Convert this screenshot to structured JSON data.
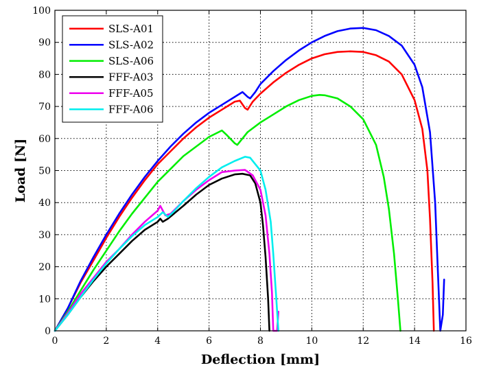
{
  "chart_data": {
    "type": "line",
    "title": "",
    "xlabel": "Deflection [mm]",
    "ylabel": "Load [N]",
    "xlim": [
      0,
      16
    ],
    "ylim": [
      0,
      100
    ],
    "xticks": [
      0,
      2,
      4,
      6,
      8,
      10,
      12,
      14,
      16
    ],
    "yticks": [
      0,
      10,
      20,
      30,
      40,
      50,
      60,
      70,
      80,
      90,
      100
    ],
    "grid": true,
    "legend_position": "top-left",
    "series": [
      {
        "name": "SLS-A01",
        "color": "#ff0000",
        "points": [
          [
            0,
            0
          ],
          [
            0.5,
            7
          ],
          [
            1,
            15
          ],
          [
            1.5,
            22
          ],
          [
            2,
            29
          ],
          [
            2.5,
            35.5
          ],
          [
            3,
            41.5
          ],
          [
            3.5,
            47
          ],
          [
            4,
            52
          ],
          [
            4.5,
            56
          ],
          [
            5,
            60
          ],
          [
            5.5,
            63.5
          ],
          [
            6,
            66.5
          ],
          [
            6.5,
            69
          ],
          [
            7,
            71.5
          ],
          [
            7.2,
            71.8
          ],
          [
            7.4,
            69.5
          ],
          [
            7.5,
            69
          ],
          [
            7.7,
            71.5
          ],
          [
            8,
            74
          ],
          [
            8.5,
            77.5
          ],
          [
            9,
            80.5
          ],
          [
            9.5,
            83
          ],
          [
            10,
            85
          ],
          [
            10.5,
            86.3
          ],
          [
            11,
            87
          ],
          [
            11.5,
            87.2
          ],
          [
            12,
            87
          ],
          [
            12.5,
            86
          ],
          [
            13,
            84
          ],
          [
            13.5,
            80
          ],
          [
            14,
            72
          ],
          [
            14.3,
            63
          ],
          [
            14.5,
            50
          ],
          [
            14.6,
            35
          ],
          [
            14.7,
            15
          ],
          [
            14.75,
            0
          ]
        ]
      },
      {
        "name": "SLS-A02",
        "color": "#0000ff",
        "points": [
          [
            0,
            0
          ],
          [
            0.5,
            7
          ],
          [
            1,
            15.5
          ],
          [
            1.5,
            23
          ],
          [
            2,
            30
          ],
          [
            2.5,
            36.5
          ],
          [
            3,
            42.5
          ],
          [
            3.5,
            48
          ],
          [
            4,
            53
          ],
          [
            4.5,
            57.5
          ],
          [
            5,
            61.5
          ],
          [
            5.5,
            65
          ],
          [
            6,
            68
          ],
          [
            6.5,
            70.5
          ],
          [
            7,
            73
          ],
          [
            7.3,
            74.5
          ],
          [
            7.5,
            73
          ],
          [
            7.6,
            72.5
          ],
          [
            7.8,
            74.5
          ],
          [
            8,
            77
          ],
          [
            8.5,
            81
          ],
          [
            9,
            84.5
          ],
          [
            9.5,
            87.5
          ],
          [
            10,
            90
          ],
          [
            10.5,
            92
          ],
          [
            11,
            93.5
          ],
          [
            11.5,
            94.3
          ],
          [
            12,
            94.5
          ],
          [
            12.5,
            93.8
          ],
          [
            13,
            92
          ],
          [
            13.5,
            89
          ],
          [
            14,
            83
          ],
          [
            14.3,
            76
          ],
          [
            14.6,
            62
          ],
          [
            14.8,
            40
          ],
          [
            14.9,
            20
          ],
          [
            14.95,
            10
          ],
          [
            15,
            0
          ],
          [
            15.1,
            5
          ],
          [
            15.15,
            16
          ]
        ]
      },
      {
        "name": "SLS-A06",
        "color": "#00ee00",
        "points": [
          [
            0,
            0
          ],
          [
            0.5,
            6
          ],
          [
            1,
            12.5
          ],
          [
            1.5,
            19
          ],
          [
            2,
            25
          ],
          [
            2.5,
            31
          ],
          [
            3,
            36.5
          ],
          [
            3.5,
            41.5
          ],
          [
            4,
            46.5
          ],
          [
            4.5,
            50.5
          ],
          [
            5,
            54.5
          ],
          [
            5.5,
            57.5
          ],
          [
            6,
            60.5
          ],
          [
            6.5,
            62.5
          ],
          [
            6.7,
            61
          ],
          [
            7,
            58.5
          ],
          [
            7.1,
            58
          ],
          [
            7.3,
            60
          ],
          [
            7.5,
            62
          ],
          [
            8,
            65
          ],
          [
            8.5,
            67.5
          ],
          [
            9,
            70
          ],
          [
            9.5,
            72
          ],
          [
            10,
            73.3
          ],
          [
            10.3,
            73.6
          ],
          [
            10.5,
            73.5
          ],
          [
            11,
            72.5
          ],
          [
            11.5,
            70
          ],
          [
            12,
            66
          ],
          [
            12.5,
            58
          ],
          [
            12.8,
            48
          ],
          [
            13,
            38
          ],
          [
            13.2,
            24
          ],
          [
            13.35,
            10
          ],
          [
            13.45,
            0
          ]
        ]
      },
      {
        "name": "FFF-A03",
        "color": "#000000",
        "points": [
          [
            0,
            0
          ],
          [
            0.5,
            5
          ],
          [
            1,
            10.5
          ],
          [
            1.5,
            15.5
          ],
          [
            2,
            20
          ],
          [
            2.5,
            24
          ],
          [
            3,
            28
          ],
          [
            3.5,
            31.5
          ],
          [
            4,
            34
          ],
          [
            4.1,
            35
          ],
          [
            4.2,
            34
          ],
          [
            4.4,
            35
          ],
          [
            5,
            39
          ],
          [
            5.5,
            42.5
          ],
          [
            6,
            45.5
          ],
          [
            6.5,
            47.5
          ],
          [
            7,
            48.8
          ],
          [
            7.3,
            49
          ],
          [
            7.6,
            48.5
          ],
          [
            7.8,
            46
          ],
          [
            8,
            40
          ],
          [
            8.1,
            33
          ],
          [
            8.2,
            23
          ],
          [
            8.3,
            10
          ],
          [
            8.35,
            0
          ]
        ]
      },
      {
        "name": "FFF-A05",
        "color": "#ee00ee",
        "points": [
          [
            0,
            0
          ],
          [
            0.5,
            5.5
          ],
          [
            1,
            11.5
          ],
          [
            1.5,
            16.5
          ],
          [
            2,
            21.5
          ],
          [
            2.5,
            25.5
          ],
          [
            3,
            30
          ],
          [
            3.5,
            34
          ],
          [
            4,
            37.5
          ],
          [
            4.1,
            39
          ],
          [
            4.3,
            36
          ],
          [
            4.5,
            36.5
          ],
          [
            5,
            40.5
          ],
          [
            5.5,
            44
          ],
          [
            6,
            47
          ],
          [
            6.5,
            49.5
          ],
          [
            7,
            50
          ],
          [
            7.4,
            50.2
          ],
          [
            7.7,
            48.5
          ],
          [
            8,
            44
          ],
          [
            8.2,
            36
          ],
          [
            8.35,
            24
          ],
          [
            8.45,
            12
          ],
          [
            8.5,
            0
          ],
          [
            8.65,
            0
          ],
          [
            8.7,
            6
          ]
        ]
      },
      {
        "name": "FFF-A06",
        "color": "#00eeee",
        "points": [
          [
            0,
            0
          ],
          [
            0.5,
            5
          ],
          [
            1,
            10.5
          ],
          [
            1.5,
            16
          ],
          [
            2,
            21
          ],
          [
            2.5,
            25.5
          ],
          [
            3,
            29.5
          ],
          [
            3.5,
            33
          ],
          [
            4,
            35.5
          ],
          [
            4.2,
            37
          ],
          [
            4.4,
            35.5
          ],
          [
            4.6,
            37
          ],
          [
            5,
            40.5
          ],
          [
            5.5,
            44.5
          ],
          [
            6,
            48
          ],
          [
            6.5,
            51
          ],
          [
            7,
            53
          ],
          [
            7.4,
            54.3
          ],
          [
            7.6,
            54
          ],
          [
            8,
            50
          ],
          [
            8.2,
            44
          ],
          [
            8.4,
            34
          ],
          [
            8.5,
            24
          ],
          [
            8.6,
            12
          ],
          [
            8.7,
            0
          ]
        ]
      }
    ]
  }
}
